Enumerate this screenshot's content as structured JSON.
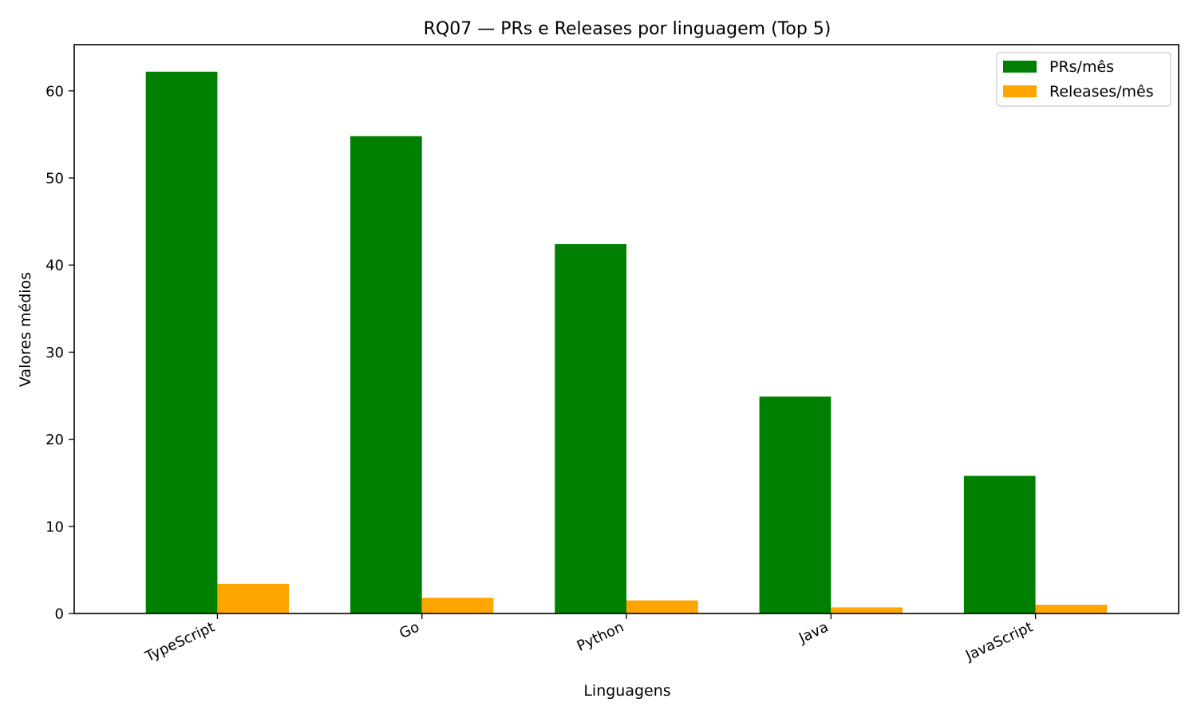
{
  "chart_data": {
    "type": "bar",
    "title": "RQ07 — PRs e Releases por linguagem (Top 5)",
    "xlabel": "Linguagens",
    "ylabel": "Valores médios",
    "categories": [
      "TypeScript",
      "Go",
      "Python",
      "Java",
      "JavaScript"
    ],
    "series": [
      {
        "name": "PRs/mês",
        "values": [
          62.2,
          54.8,
          42.4,
          24.9,
          15.8
        ],
        "color": "#008000"
      },
      {
        "name": "Releases/mês",
        "values": [
          3.4,
          1.8,
          1.5,
          0.7,
          1.0
        ],
        "color": "#FFA500"
      }
    ],
    "ylim": [
      0,
      65.3
    ],
    "yticks": [
      "0",
      "10",
      "20",
      "30",
      "40",
      "50",
      "60"
    ],
    "grid": false,
    "legend_position": "top-right"
  }
}
